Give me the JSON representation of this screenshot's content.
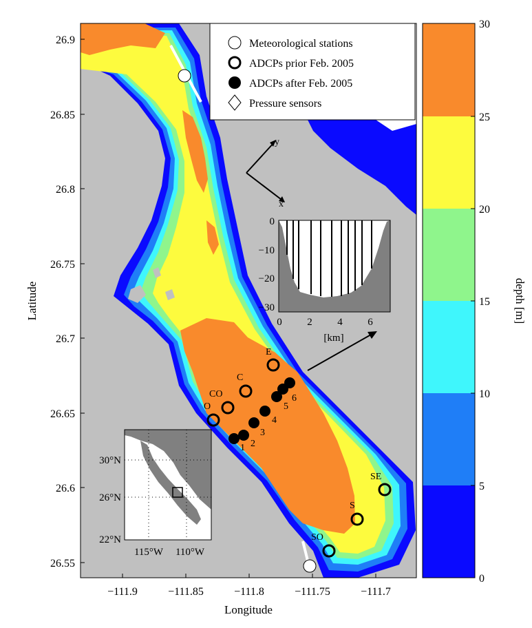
{
  "map": {
    "xlabel": "Longitude",
    "ylabel": "Latitude",
    "x_ticks": [
      "−111.9",
      "−111.85",
      "−111.8",
      "−111.75",
      "−111.7"
    ],
    "y_ticks": [
      "26.9",
      "26.85",
      "26.8",
      "26.75",
      "26.7",
      "26.65",
      "26.6",
      "26.55"
    ],
    "x_range": [
      -111.925,
      -111.685
    ],
    "y_range": [
      26.54,
      26.915
    ],
    "land_color": "#c0c0c0"
  },
  "legend": {
    "entries": [
      {
        "symbol": "open-circle",
        "label": "Meteorological stations"
      },
      {
        "symbol": "thick-open-circle",
        "label": "ADCPs prior Feb. 2005"
      },
      {
        "symbol": "filled-circle",
        "label": "ADCPs after Feb. 2005"
      },
      {
        "symbol": "diamond",
        "label": "Pressure sensors"
      }
    ]
  },
  "colorbar": {
    "label": "depth [m]",
    "ticks": [
      "0",
      "5",
      "10",
      "15",
      "20",
      "25",
      "30"
    ],
    "bands": [
      {
        "range": [
          0,
          5
        ],
        "color": "#0a0aff"
      },
      {
        "range": [
          5,
          10
        ],
        "color": "#1f7ef7"
      },
      {
        "range": [
          10,
          15
        ],
        "color": "#3ff6fc"
      },
      {
        "range": [
          15,
          20
        ],
        "color": "#8ff58c"
      },
      {
        "range": [
          20,
          25
        ],
        "color": "#fdfb3e"
      },
      {
        "range": [
          25,
          30
        ],
        "color": "#f98a2c"
      }
    ]
  },
  "stations": {
    "prior": [
      "E",
      "C",
      "CO",
      "O",
      "SE",
      "S",
      "SO"
    ],
    "after": [
      "1",
      "2",
      "3",
      "4",
      "5",
      "6"
    ]
  },
  "axes_arrow": {
    "x_label": "x",
    "y_label": "y"
  },
  "section_inset": {
    "xlabel": "[km]",
    "x_ticks": [
      "0",
      "2",
      "4",
      "6"
    ],
    "y_ticks": [
      "0",
      "−10",
      "−20",
      "−30"
    ]
  },
  "locator_inset": {
    "lat_ticks": [
      "30°N",
      "26°N",
      "22°N"
    ],
    "lon_ticks": [
      "115°W",
      "110°W"
    ]
  }
}
